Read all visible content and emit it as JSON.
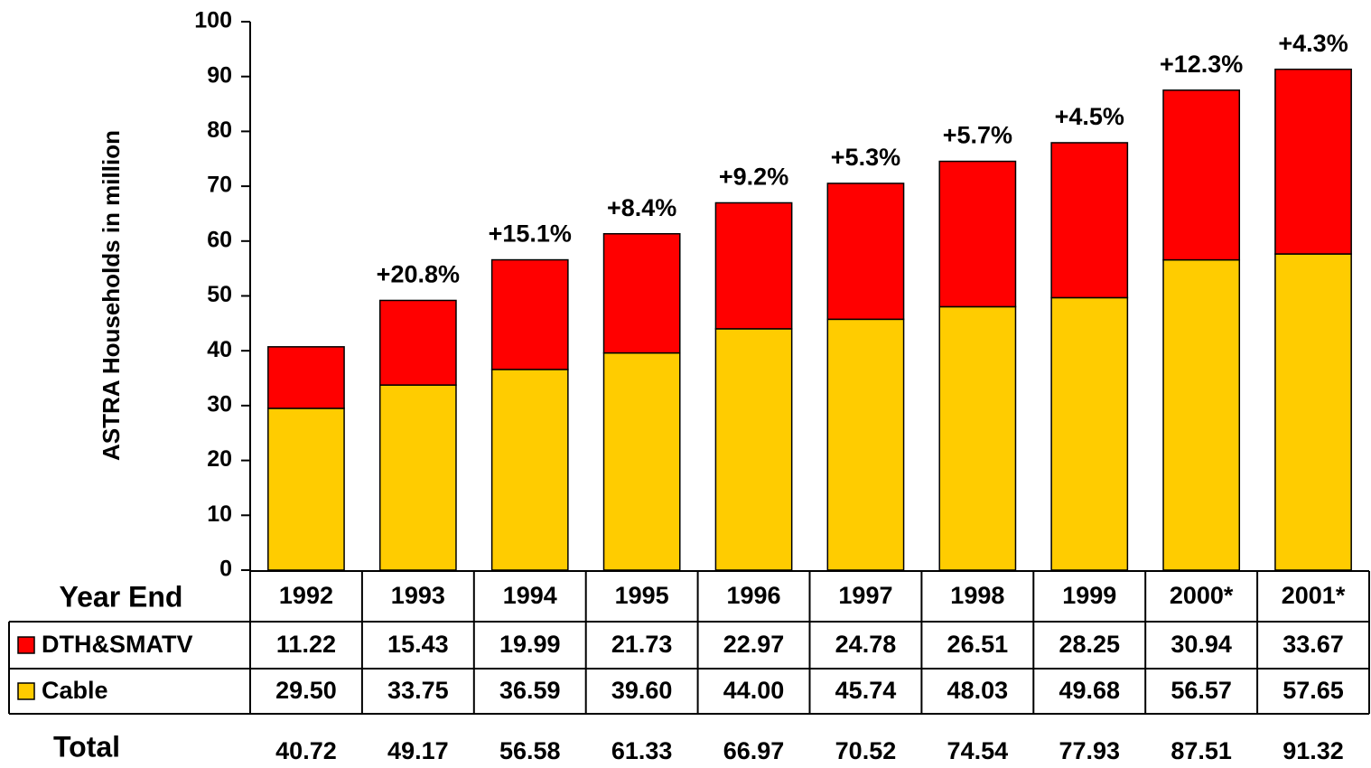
{
  "chart_data": {
    "type": "stacked_bar",
    "y_label": "ASTRA Households in million",
    "table_header": "Year End",
    "total_label": "Total",
    "categories": [
      "1992",
      "1993",
      "1994",
      "1995",
      "1996",
      "1997",
      "1998",
      "1999",
      "2000*",
      "2001*"
    ],
    "series": [
      {
        "name": "Cable",
        "color": "#ffcc00",
        "values": [
          29.5,
          33.75,
          36.59,
          39.6,
          44,
          45.74,
          48.03,
          49.68,
          56.57,
          57.65
        ],
        "value_labels": [
          "29.50",
          "33.75",
          "36.59",
          "39.60",
          "44.00",
          "45.74",
          "48.03",
          "49.68",
          "56.57",
          "57.65"
        ]
      },
      {
        "name": "DTH&SMATV",
        "color": "#ff0000",
        "values": [
          11.22,
          15.43,
          19.99,
          21.73,
          22.97,
          24.78,
          26.51,
          28.25,
          30.94,
          33.67
        ],
        "value_labels": [
          "11.22",
          "15.43",
          "19.99",
          "21.73",
          "22.97",
          "24.78",
          "26.51",
          "28.25",
          "30.94",
          "33.67"
        ]
      }
    ],
    "totals": [
      40.72,
      49.17,
      56.58,
      61.33,
      66.97,
      70.52,
      74.54,
      77.93,
      87.51,
      91.32
    ],
    "growth_labels": [
      null,
      "+20.8%",
      "+15.1%",
      "+8.4%",
      "+9.2%",
      "+5.3%",
      "+5.7%",
      "+4.5%",
      "+12.3%",
      "+4.3%"
    ],
    "ylim": [
      0,
      100
    ],
    "yticks": [
      0,
      10,
      20,
      30,
      40,
      50,
      60,
      70,
      80,
      90,
      100
    ]
  }
}
